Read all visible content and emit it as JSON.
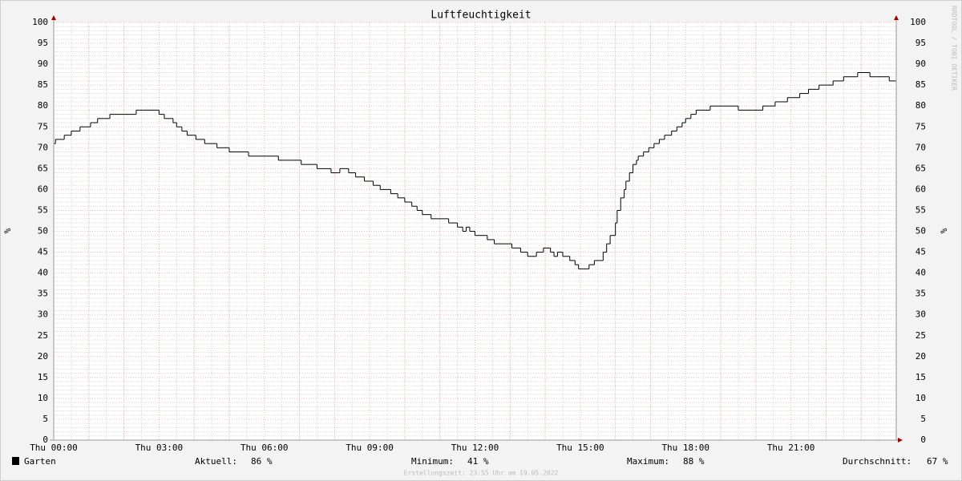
{
  "chart_data": {
    "type": "step",
    "title": "Luftfeuchtigkeit",
    "y_label": "%",
    "y2_label": "%",
    "watermark": "RRDTOOL / TOBI OETIKER",
    "xlim": [
      0,
      24
    ],
    "xticks": [
      {
        "value": 0,
        "label": "Thu 00:00"
      },
      {
        "value": 3,
        "label": "Thu 03:00"
      },
      {
        "value": 6,
        "label": "Thu 06:00"
      },
      {
        "value": 9,
        "label": "Thu 09:00"
      },
      {
        "value": 12,
        "label": "Thu 12:00"
      },
      {
        "value": 15,
        "label": "Thu 15:00"
      },
      {
        "value": 18,
        "label": "Thu 18:00"
      },
      {
        "value": 21,
        "label": "Thu 21:00"
      }
    ],
    "ylim": [
      0,
      100
    ],
    "yticks": [
      0,
      5,
      10,
      15,
      20,
      25,
      30,
      35,
      40,
      45,
      50,
      55,
      60,
      65,
      70,
      75,
      80,
      85,
      90,
      95,
      100
    ],
    "grid": true,
    "x": [
      0.0,
      0.05,
      0.3,
      0.5,
      0.75,
      1.05,
      1.25,
      1.6,
      2.35,
      3.0,
      3.15,
      3.4,
      3.5,
      3.65,
      3.8,
      4.05,
      4.3,
      4.65,
      5.0,
      5.55,
      6.4,
      7.05,
      7.5,
      7.9,
      8.15,
      8.4,
      8.6,
      8.85,
      9.1,
      9.3,
      9.6,
      9.8,
      10.0,
      10.2,
      10.35,
      10.5,
      10.75,
      11.25,
      11.5,
      11.65,
      11.75,
      11.85,
      12.0,
      12.35,
      12.55,
      13.05,
      13.3,
      13.5,
      13.75,
      13.95,
      14.15,
      14.25,
      14.35,
      14.5,
      14.7,
      14.85,
      14.95,
      15.25,
      15.4,
      15.65,
      15.75,
      15.85,
      16.0,
      16.05,
      16.15,
      16.25,
      16.3,
      16.4,
      16.5,
      16.6,
      16.65,
      16.8,
      16.95,
      17.1,
      17.25,
      17.4,
      17.6,
      17.75,
      17.9,
      18.0,
      18.15,
      18.3,
      18.7,
      19.5,
      20.2,
      20.55,
      20.9,
      21.25,
      21.5,
      21.8,
      22.2,
      22.5,
      22.9,
      23.25,
      23.8
    ],
    "series": [
      {
        "name": "Garten",
        "color": "#000000",
        "values": [
          71,
          72,
          73,
          74,
          75,
          76,
          77,
          78,
          79,
          78,
          77,
          76,
          75,
          74,
          73,
          72,
          71,
          70,
          69,
          68,
          67,
          66,
          65,
          64,
          65,
          64,
          63,
          62,
          61,
          60,
          59,
          58,
          57,
          56,
          55,
          54,
          53,
          52,
          51,
          50,
          51,
          50,
          49,
          48,
          47,
          46,
          45,
          44,
          45,
          46,
          45,
          44,
          45,
          44,
          43,
          42,
          41,
          42,
          43,
          45,
          47,
          49,
          52,
          55,
          58,
          60,
          62,
          64,
          66,
          67,
          68,
          69,
          70,
          71,
          72,
          73,
          74,
          75,
          76,
          77,
          78,
          79,
          80,
          79,
          80,
          81,
          82,
          83,
          84,
          85,
          86,
          87,
          88,
          87,
          86
        ]
      }
    ]
  },
  "stats": [
    {
      "label": "Aktuell:",
      "value": "86 %"
    },
    {
      "label": "Minimum:",
      "value": "41 %"
    },
    {
      "label": "Maximum:",
      "value": "88 %"
    },
    {
      "label": "Durchschnitt:",
      "value": "67 %"
    }
  ],
  "footer": "Erstellungszeit: 23:55 Uhr am 19.05.2022"
}
